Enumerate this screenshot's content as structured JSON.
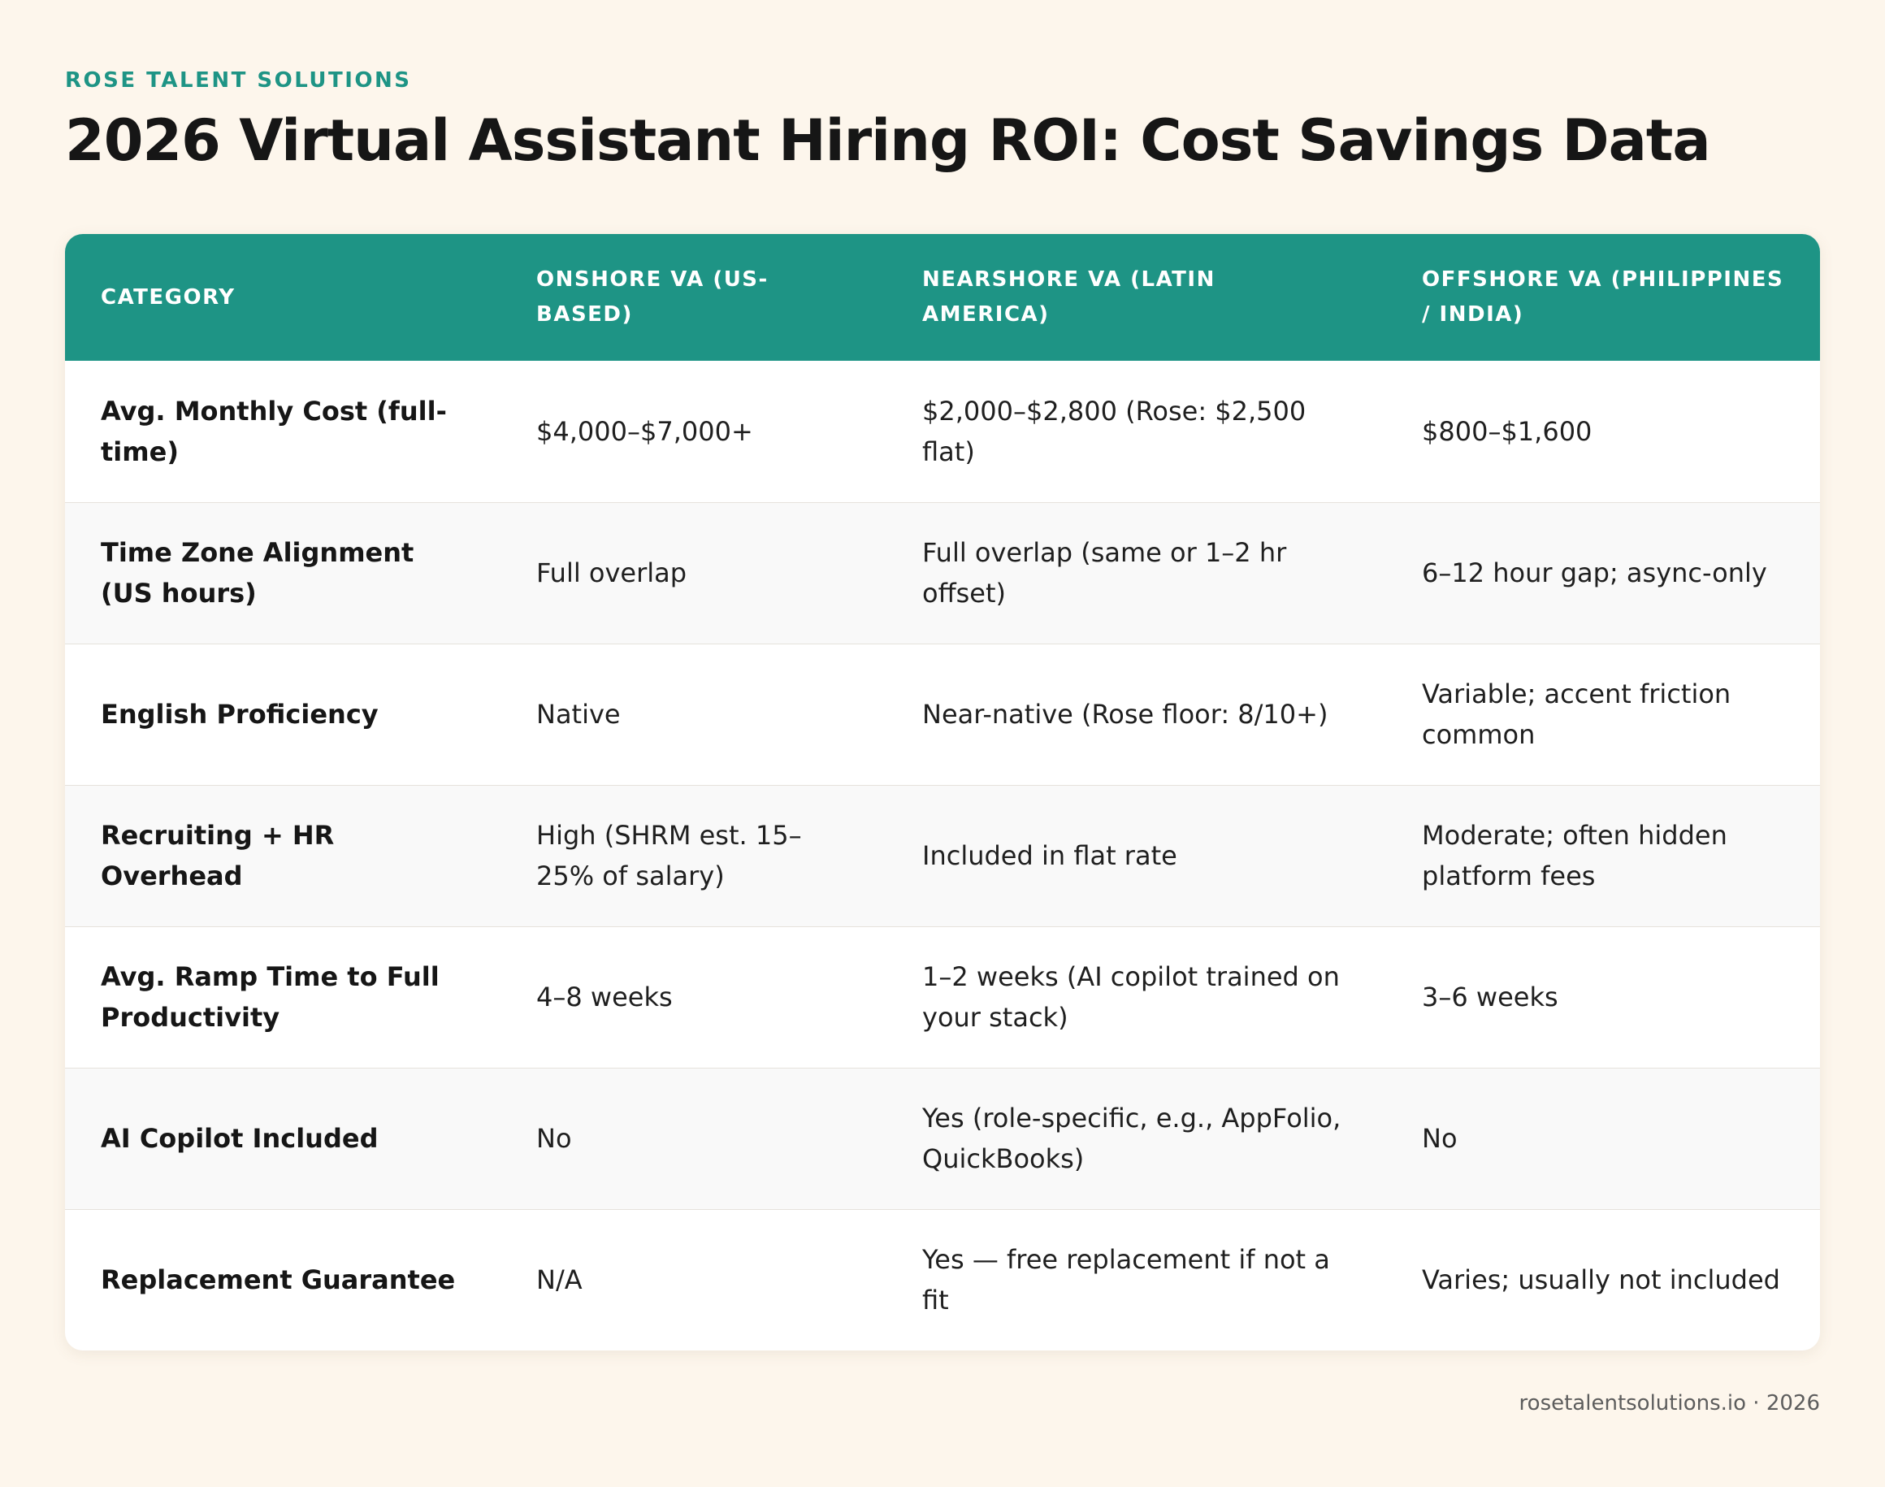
{
  "header": {
    "brand": "ROSE TALENT SOLUTIONS",
    "title": "2026 Virtual Assistant Hiring ROI: Cost Savings Data"
  },
  "table": {
    "columns": [
      "CATEGORY",
      "ONSHORE VA (US-BASED)",
      "NEARSHORE VA (LATIN AMERICA)",
      "OFFSHORE VA (PHILIPPINES / INDIA)"
    ],
    "rows": [
      [
        "Avg. Monthly Cost (full-time)",
        "$4,000–$7,000+",
        "$2,000–$2,800 (Rose: $2,500 flat)",
        "$800–$1,600"
      ],
      [
        "Time Zone Alignment (US hours)",
        "Full overlap",
        "Full overlap (same or 1–2 hr offset)",
        "6–12 hour gap; async-only"
      ],
      [
        "English Proficiency",
        "Native",
        "Near-native (Rose floor: 8/10+)",
        "Variable; accent friction common"
      ],
      [
        "Recruiting + HR Overhead",
        "High (SHRM est. 15–25% of salary)",
        "Included in flat rate",
        "Moderate; often hidden platform fees"
      ],
      [
        "Avg. Ramp Time to Full Productivity",
        "4–8 weeks",
        "1–2 weeks (AI copilot trained on your stack)",
        "3–6 weeks"
      ],
      [
        "AI Copilot Included",
        "No",
        "Yes (role-specific, e.g., AppFolio, QuickBooks)",
        "No"
      ],
      [
        "Replacement Guarantee",
        "N/A",
        "Yes — free replacement if not a fit",
        "Varies; usually not included"
      ]
    ]
  },
  "footer": {
    "text": "rosetalentsolutions.io · 2026"
  },
  "colors": {
    "accent": "#1e9485",
    "background": "#fdf6ec",
    "card": "#ffffff",
    "alt_row": "#f9f9f9"
  }
}
